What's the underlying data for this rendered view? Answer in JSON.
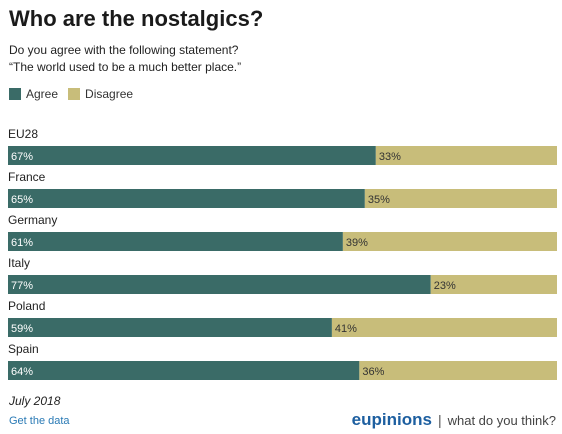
{
  "header": {
    "title": "Who are the nostalgics?",
    "subtitle_line1": "Do you agree with the following statement?",
    "subtitle_line2": "“The world used to be a much better place.”"
  },
  "colors": {
    "agree": "#3a6b67",
    "disagree": "#c8bd7a"
  },
  "chart_data": {
    "type": "bar",
    "orientation": "horizontal",
    "stacked": true,
    "categories": [
      "EU28",
      "France",
      "Germany",
      "Italy",
      "Poland",
      "Spain"
    ],
    "series": [
      {
        "name": "Agree",
        "values": [
          67,
          65,
          61,
          77,
          59,
          64
        ],
        "labels": [
          "67%",
          "65%",
          "61%",
          "77%",
          "59%",
          "64%"
        ]
      },
      {
        "name": "Disagree",
        "values": [
          33,
          35,
          39,
          23,
          41,
          36
        ],
        "labels": [
          "33%",
          "35%",
          "39%",
          "23%",
          "41%",
          "36%"
        ]
      }
    ],
    "xlim": [
      0,
      100
    ],
    "legend_position": "top-left",
    "grid": false
  },
  "footer": {
    "date": "July 2018",
    "link": "Get the data",
    "brand": "eupinions",
    "separator": "|",
    "tagline": "what do you think?"
  }
}
